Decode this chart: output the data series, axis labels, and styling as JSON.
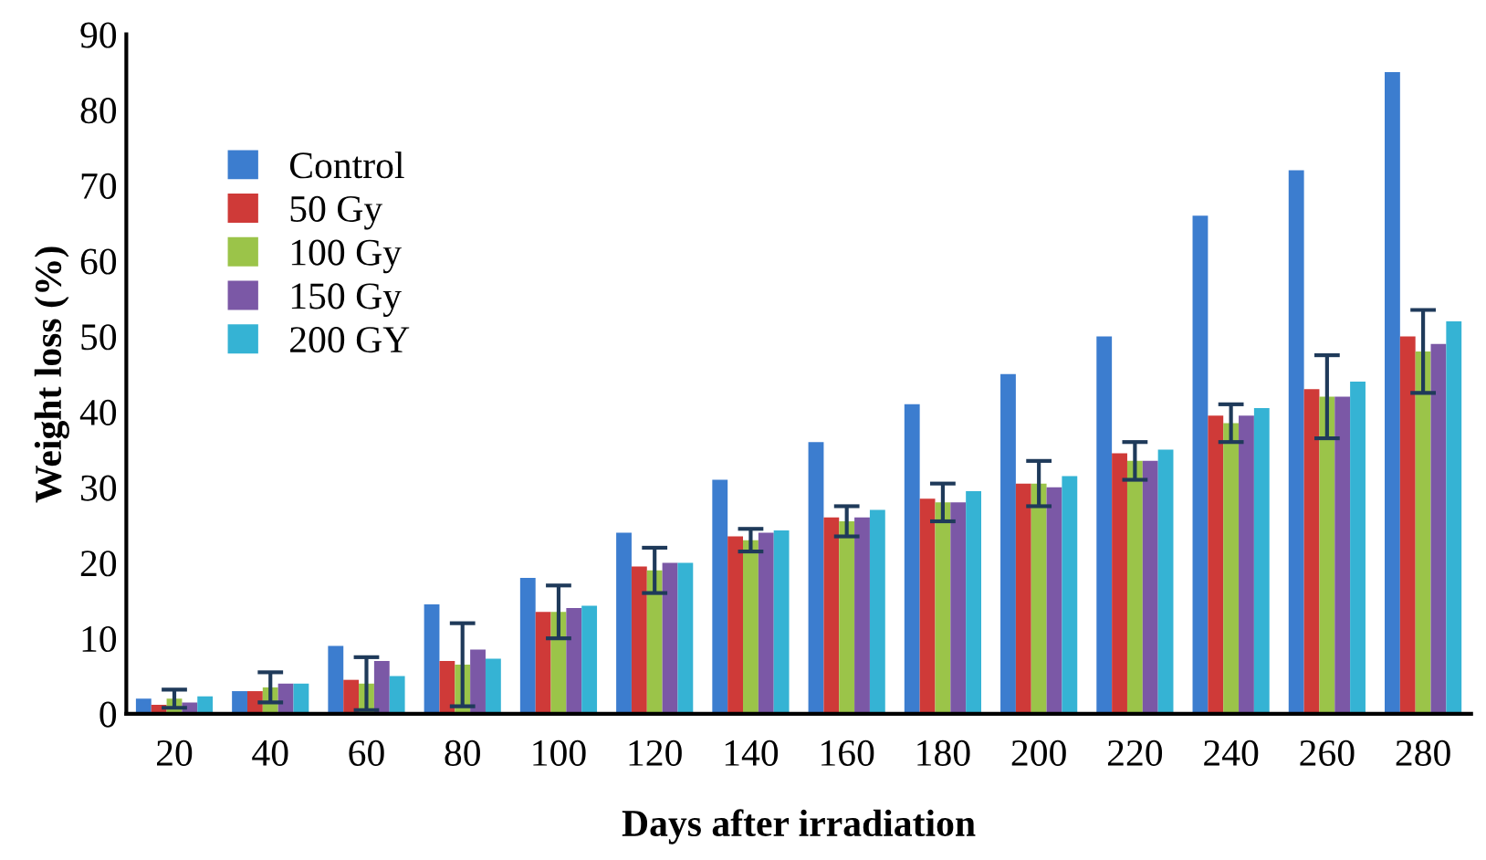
{
  "chart_data": {
    "type": "bar",
    "xlabel": "Days after irradiation",
    "ylabel": "Weight loss (%)",
    "categories": [
      "20",
      "40",
      "60",
      "80",
      "100",
      "120",
      "140",
      "160",
      "180",
      "200",
      "220",
      "240",
      "260",
      "280"
    ],
    "series": [
      {
        "name": "Control",
        "color": "#3c7dcf",
        "values": [
          2,
          3,
          9,
          14.5,
          18,
          24,
          31,
          36,
          41,
          45,
          50,
          66,
          72,
          85
        ]
      },
      {
        "name": "50 Gy",
        "color": "#cf3a38",
        "values": [
          1.2,
          3,
          4.5,
          7,
          13.5,
          19.5,
          23.5,
          26,
          28.5,
          30.5,
          34.5,
          39.5,
          43,
          50
        ]
      },
      {
        "name": "100 Gy",
        "color": "#9bc449",
        "values": [
          2,
          3.5,
          4,
          6.5,
          13.5,
          19,
          23,
          25.5,
          28,
          30.5,
          33.5,
          38.5,
          42,
          48
        ],
        "errors": [
          1.2,
          2,
          3.5,
          5.5,
          3.5,
          3,
          1.5,
          2,
          2.5,
          3,
          2.5,
          2.5,
          5.5,
          5.5
        ]
      },
      {
        "name": "150 Gy",
        "color": "#7b58a6",
        "values": [
          1.5,
          4,
          7,
          8.5,
          14,
          20,
          24,
          26,
          28,
          30,
          33.5,
          39.5,
          42,
          49
        ]
      },
      {
        "name": "200 GY",
        "color": "#35b3d4",
        "values": [
          2.3,
          4,
          5,
          7.3,
          14.3,
          20,
          24.3,
          27,
          29.5,
          31.5,
          35,
          40.5,
          44,
          52
        ]
      }
    ],
    "ylim": [
      0,
      90
    ],
    "yticks": [
      0,
      10,
      20,
      30,
      40,
      50,
      60,
      70,
      80,
      90
    ],
    "grid": false,
    "legend": "top left"
  }
}
